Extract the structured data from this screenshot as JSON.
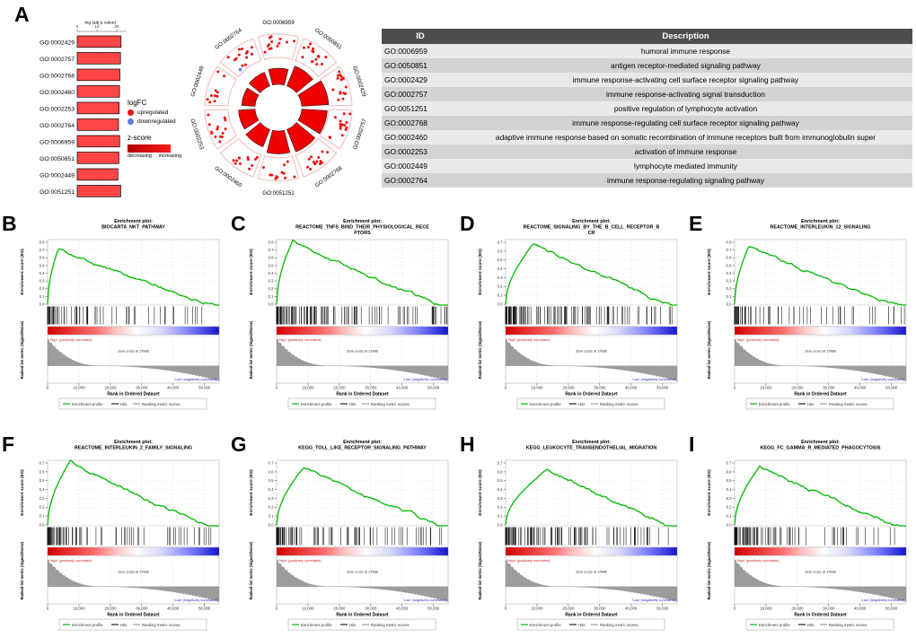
{
  "figure": {
    "background": "#ffffff",
    "panel_a_label": "A"
  },
  "chart_data": [
    {
      "id": "go_barchart",
      "type": "bar",
      "orientation": "horizontal",
      "title": "-log (adj p-value)",
      "x_ticks": [
        0,
        10,
        20
      ],
      "xlim": [
        0,
        25
      ],
      "categories": [
        "GO:0002429",
        "GO:0002757",
        "GO:0002768",
        "GO:0002460",
        "GO:0002253",
        "GO:0002764",
        "GO:0006959",
        "GO:0050851",
        "GO:0002449",
        "GO:0051251"
      ],
      "values": [
        22.2,
        21.9,
        21.6,
        21.4,
        21.2,
        20.9,
        21.5,
        21.1,
        20.6,
        22.0
      ],
      "bar_color": "#ff4545",
      "bar_border": "#000000"
    },
    {
      "id": "go_circle",
      "type": "circular",
      "legend": {
        "logfc_title": "logFC",
        "upregulated_label": "upregulated",
        "downregulated_label": "downregulated",
        "up_color": "#ee1111",
        "down_color": "#5b7fe4",
        "zscore_title": "z-score",
        "zscore_left": "decreasing",
        "zscore_right": "increasing",
        "zscore_gradient": [
          "#b30000",
          "#ff1a1a"
        ]
      },
      "segments": [
        {
          "id": "GO:0006959",
          "bar": 0.6,
          "dots": 13
        },
        {
          "id": "GO:0050851",
          "bar": 0.8,
          "dots": 15
        },
        {
          "id": "GO:0002429",
          "bar": 1.0,
          "dots": 16
        },
        {
          "id": "GO:0002757",
          "bar": 0.95,
          "dots": 15
        },
        {
          "id": "GO:0002768",
          "bar": 0.9,
          "dots": 14
        },
        {
          "id": "GO:0051251",
          "bar": 0.85,
          "dots": 12
        },
        {
          "id": "GO:0002460",
          "bar": 0.7,
          "dots": 12
        },
        {
          "id": "GO:0002253",
          "bar": 0.62,
          "dots": 14
        },
        {
          "id": "GO:0002449",
          "bar": 0.5,
          "dots": 10
        },
        {
          "id": "GO:0002764",
          "bar": 0.55,
          "dots": 13
        }
      ],
      "blue_dot_segment": 9
    },
    {
      "id": "go_table",
      "type": "table",
      "headers": [
        "ID",
        "Description"
      ],
      "rows": [
        [
          "GO:0006959",
          "humoral immune response"
        ],
        [
          "GO:0050851",
          "antigen receptor-mediated signaling pathway"
        ],
        [
          "GO:0002429",
          "immune response-activating cell surface receptor signaling pathway"
        ],
        [
          "GO:0002757",
          "immune response-activating signal transduction"
        ],
        [
          "GO:0051251",
          "positive regulation of lymphocyte activation"
        ],
        [
          "GO:0002768",
          "immune response-regulating cell surface receptor signaling pathway"
        ],
        [
          "GO:0002460",
          "adaptive immune response based on somatic recombination of immune receptors built from immunoglobulin super"
        ],
        [
          "GO:0002253",
          "activation of immune response"
        ],
        [
          "GO:0002449",
          "lymphocyte mediated immunity"
        ],
        [
          "GO:0002764",
          "immune response-regulating signaling pathway"
        ]
      ]
    },
    {
      "id": "gsea",
      "type": "line",
      "common": {
        "title_prefix": "Enrichment plot:",
        "ylabel_top": "Enrichment score (ES)",
        "ylabel_bottom": "Ranked list metric (Signal2Noise)",
        "xlabel": "Rank in Ordered Dataset",
        "x_ticks": [
          "0",
          "10,000",
          "20,000",
          "30,000",
          "40,000",
          "50,000"
        ],
        "x_tick_values": [
          0,
          10000,
          20000,
          30000,
          40000,
          50000
        ],
        "x_max": 54675,
        "zero_cross_label": "Zero cross at 17986",
        "zero_cross_x": 17986,
        "high_label": "'High' (positively correlated)",
        "low_label": "'Low' (negatively correlated)",
        "legend_items": [
          "Enrichment profile",
          "Hits",
          "Ranking metric scores"
        ],
        "curve_color": "#00b800",
        "hits_color": "#111111",
        "metric_color": "#9c9c9c"
      },
      "panels": [
        {
          "label": "B",
          "title_lines": [
            "BIOCARTA_NKT_PATHWAY"
          ],
          "es_axis_max": 0.8,
          "peak_es": 0.72,
          "peak_rank": 3500,
          "n_hits": 70
        },
        {
          "label": "C",
          "title_lines": [
            "REACTOME_TNFS_BIND_THEIR_PHYSIOLOGICAL_RECE",
            "PTORS"
          ],
          "es_axis_max": 0.8,
          "peak_es": 0.8,
          "peak_rank": 5000,
          "n_hits": 115
        },
        {
          "label": "D",
          "title_lines": [
            "REACTOME_SIGNALING_BY_THE_B_CELL_RECEPTOR_B",
            "CR"
          ],
          "es_axis_max": 0.7,
          "peak_es": 0.69,
          "peak_rank": 9000,
          "n_hits": 130
        },
        {
          "label": "E",
          "title_lines": [
            "REACTOME_INTERLEUKIN_12_SIGNALING"
          ],
          "es_axis_max": 0.8,
          "peak_es": 0.74,
          "peak_rank": 4500,
          "n_hits": 60
        },
        {
          "label": "F",
          "title_lines": [
            "REACTOME_INTERLEUKIN_2_FAMILY_SIGNALING"
          ],
          "es_axis_max": 0.7,
          "peak_es": 0.7,
          "peak_rank": 7000,
          "n_hits": 85
        },
        {
          "label": "G",
          "title_lines": [
            "KEGG_TOLL_LIKE_RECEPTOR_SIGNALING_PATHWAY"
          ],
          "es_axis_max": 0.7,
          "peak_es": 0.66,
          "peak_rank": 9000,
          "n_hits": 95
        },
        {
          "label": "H",
          "title_lines": [
            "KEGG_LEUKOCYTE_TRANSENDOTHELIAL_MIGRATION"
          ],
          "es_axis_max": 0.7,
          "peak_es": 0.62,
          "peak_rank": 13000,
          "n_hits": 110
        },
        {
          "label": "I",
          "title_lines": [
            "KEGG_FC_GAMMA_R_MEDIATED_PHAGOCYTOSIS"
          ],
          "es_axis_max": 0.7,
          "peak_es": 0.66,
          "peak_rank": 8000,
          "n_hits": 90
        }
      ]
    }
  ]
}
